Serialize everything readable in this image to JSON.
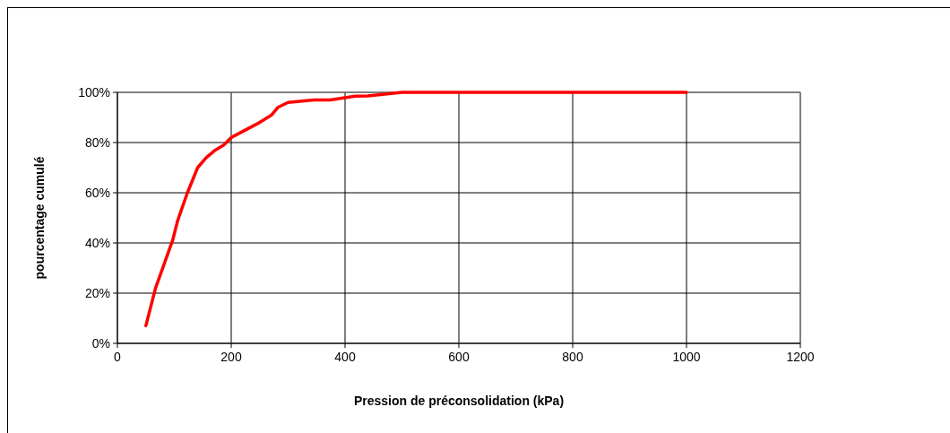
{
  "chart_data": {
    "type": "line",
    "xlabel": "Pression de préconsolidation (kPa)",
    "ylabel": "pourcentage cumulé",
    "xlim": [
      0,
      1200
    ],
    "xticks": [
      0,
      200,
      400,
      600,
      800,
      1000,
      1200
    ],
    "ylim": [
      0,
      100
    ],
    "yticks": [
      {
        "value": 0,
        "label": "0%"
      },
      {
        "value": 20,
        "label": "20%"
      },
      {
        "value": 40,
        "label": "40%"
      },
      {
        "value": 60,
        "label": "60%"
      },
      {
        "value": 80,
        "label": "80%"
      },
      {
        "value": 100,
        "label": "100%"
      }
    ],
    "grid": true,
    "marker": "none",
    "line_style": "solid",
    "series": [
      {
        "color": "#ff0000",
        "x": [
          50,
          67,
          97,
          106,
          123,
          141,
          156,
          172,
          187,
          200,
          250,
          271,
          282,
          300,
          345,
          374,
          418,
          440,
          500,
          1000
        ],
        "values": [
          7,
          22,
          41,
          49,
          60,
          70,
          74,
          77,
          79,
          82,
          88,
          91,
          94,
          96,
          97,
          97,
          98.5,
          98.6,
          100,
          100
        ]
      }
    ]
  }
}
